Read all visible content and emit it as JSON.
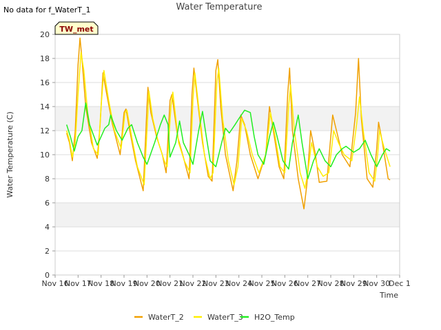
{
  "no_data_note": "No data for f_WaterT_1",
  "badge": "TW_met",
  "colors": {
    "WaterT_2": "#f0a000",
    "WaterT_3": "#ffee00",
    "H2O_Temp": "#22ee22",
    "band": "#f2f2f2",
    "grid": "#dddddd",
    "badge_bg": "#ffffcc"
  },
  "chart_data": {
    "type": "line",
    "title": "Water Temperature",
    "xlabel": "Time",
    "ylabel": "Water Temperature (C)",
    "ylim": [
      0,
      20
    ],
    "xlim": [
      "2023-11-16",
      "2023-12-01"
    ],
    "yticks": [
      0,
      2,
      4,
      6,
      8,
      10,
      12,
      14,
      16,
      18,
      20
    ],
    "xticks": [
      "Nov 16",
      "Nov 17",
      "Nov 18",
      "Nov 19",
      "Nov 20",
      "Nov 21",
      "Nov 22",
      "Nov 23",
      "Nov 24",
      "Nov 25",
      "Nov 26",
      "Nov 27",
      "Nov 28",
      "Nov 29",
      "Nov 30",
      "Dec 1"
    ],
    "grid": true,
    "legend_position": "bottom",
    "series": [
      {
        "name": "WaterT_2",
        "points": [
          [
            "Nov 16 12:00",
            11.8
          ],
          [
            "Nov 16 15:00",
            11.0
          ],
          [
            "Nov 16 18:00",
            9.5
          ],
          [
            "Nov 16 21:00",
            12.0
          ],
          [
            "Nov 17 00:00",
            17.5
          ],
          [
            "Nov 17 02:00",
            19.7
          ],
          [
            "Nov 17 04:00",
            18.0
          ],
          [
            "Nov 17 08:00",
            14.0
          ],
          [
            "Nov 17 14:00",
            11.0
          ],
          [
            "Nov 17 20:00",
            9.7
          ],
          [
            "Nov 17 23:00",
            12.5
          ],
          [
            "Nov 18 02:00",
            16.8
          ],
          [
            "Nov 18 06:00",
            15.0
          ],
          [
            "Nov 18 12:00",
            12.5
          ],
          [
            "Nov 18 20:00",
            10.0
          ],
          [
            "Nov 19 00:00",
            13.5
          ],
          [
            "Nov 19 02:00",
            13.8
          ],
          [
            "Nov 19 06:00",
            12.0
          ],
          [
            "Nov 19 12:00",
            9.5
          ],
          [
            "Nov 19 20:00",
            7.0
          ],
          [
            "Nov 20 00:00",
            14.0
          ],
          [
            "Nov 20 01:00",
            15.6
          ],
          [
            "Nov 20 04:00",
            13.5
          ],
          [
            "Nov 20 10:00",
            11.5
          ],
          [
            "Nov 20 16:00",
            10.0
          ],
          [
            "Nov 20 20:00",
            8.5
          ],
          [
            "Nov 21 00:00",
            14.5
          ],
          [
            "Nov 21 02:00",
            15.0
          ],
          [
            "Nov 21 08:00",
            11.5
          ],
          [
            "Nov 21 14:00",
            9.8
          ],
          [
            "Nov 21 20:00",
            8.0
          ],
          [
            "Nov 21 23:00",
            15.0
          ],
          [
            "Nov 22 01:00",
            17.2
          ],
          [
            "Nov 22 04:00",
            15.0
          ],
          [
            "Nov 22 10:00",
            11.0
          ],
          [
            "Nov 22 16:00",
            8.2
          ],
          [
            "Nov 22 20:00",
            7.8
          ],
          [
            "Nov 23 00:00",
            17.0
          ],
          [
            "Nov 23 02:00",
            17.9
          ],
          [
            "Nov 23 05:00",
            14.0
          ],
          [
            "Nov 23 10:00",
            10.0
          ],
          [
            "Nov 23 18:00",
            7.0
          ],
          [
            "Nov 23 22:00",
            9.5
          ],
          [
            "Nov 24 02:00",
            13.3
          ],
          [
            "Nov 24 06:00",
            12.5
          ],
          [
            "Nov 24 12:00",
            10.0
          ],
          [
            "Nov 24 20:00",
            8.0
          ],
          [
            "Nov 25 04:00",
            10.0
          ],
          [
            "Nov 25 08:00",
            14.0
          ],
          [
            "Nov 25 12:00",
            12.0
          ],
          [
            "Nov 25 18:00",
            9.0
          ],
          [
            "Nov 25 23:00",
            8.0
          ],
          [
            "Nov 26 03:00",
            15.0
          ],
          [
            "Nov 26 05:00",
            17.2
          ],
          [
            "Nov 26 08:00",
            12.0
          ],
          [
            "Nov 26 14:00",
            8.0
          ],
          [
            "Nov 26 20:00",
            5.5
          ],
          [
            "Nov 26 23:00",
            7.5
          ],
          [
            "Nov 27 03:00",
            12.0
          ],
          [
            "Nov 27 08:00",
            10.0
          ],
          [
            "Nov 27 12:00",
            7.7
          ],
          [
            "Nov 27 20:00",
            7.8
          ],
          [
            "Nov 28 02:00",
            13.3
          ],
          [
            "Nov 28 06:00",
            12.0
          ],
          [
            "Nov 28 12:00",
            10.0
          ],
          [
            "Nov 28 20:00",
            9.0
          ],
          [
            "Nov 29 02:00",
            13.5
          ],
          [
            "Nov 29 05:00",
            18.0
          ],
          [
            "Nov 29 08:00",
            13.0
          ],
          [
            "Nov 29 14:00",
            8.0
          ],
          [
            "Nov 29 20:00",
            7.3
          ],
          [
            "Nov 30 00:00",
            10.5
          ],
          [
            "Nov 30 02:00",
            12.7
          ],
          [
            "Nov 30 06:00",
            11.0
          ],
          [
            "Nov 30 12:00",
            8.0
          ],
          [
            "Nov 30 14:00",
            7.9
          ]
        ]
      },
      {
        "name": "WaterT_3",
        "points": [
          [
            "Nov 16 12:00",
            12.0
          ],
          [
            "Nov 16 15:00",
            11.2
          ],
          [
            "Nov 16 18:00",
            9.8
          ],
          [
            "Nov 16 21:00",
            11.0
          ],
          [
            "Nov 17 00:00",
            15.0
          ],
          [
            "Nov 17 03:00",
            18.5
          ],
          [
            "Nov 17 06:00",
            17.0
          ],
          [
            "Nov 17 10:00",
            13.5
          ],
          [
            "Nov 17 16:00",
            10.5
          ],
          [
            "Nov 17 21:00",
            10.0
          ],
          [
            "Nov 18 00:00",
            14.0
          ],
          [
            "Nov 18 03:00",
            17.0
          ],
          [
            "Nov 18 08:00",
            14.5
          ],
          [
            "Nov 18 14:00",
            12.0
          ],
          [
            "Nov 18 21:00",
            10.5
          ],
          [
            "Nov 19 01:00",
            13.5
          ],
          [
            "Nov 19 03:00",
            13.7
          ],
          [
            "Nov 19 08:00",
            11.5
          ],
          [
            "Nov 19 14:00",
            9.0
          ],
          [
            "Nov 19 21:00",
            7.5
          ],
          [
            "Nov 20 01:00",
            13.5
          ],
          [
            "Nov 20 02:00",
            15.3
          ],
          [
            "Nov 20 06:00",
            13.0
          ],
          [
            "Nov 20 12:00",
            11.0
          ],
          [
            "Nov 20 18:00",
            9.5
          ],
          [
            "Nov 20 21:00",
            9.0
          ],
          [
            "Nov 21 01:00",
            14.0
          ],
          [
            "Nov 21 03:00",
            15.2
          ],
          [
            "Nov 21 09:00",
            11.0
          ],
          [
            "Nov 21 15:00",
            9.5
          ],
          [
            "Nov 21 21:00",
            8.5
          ],
          [
            "Nov 22 00:00",
            14.5
          ],
          [
            "Nov 22 02:00",
            16.8
          ],
          [
            "Nov 22 06:00",
            14.0
          ],
          [
            "Nov 22 12:00",
            10.0
          ],
          [
            "Nov 22 18:00",
            8.0
          ],
          [
            "Nov 22 21:00",
            8.5
          ],
          [
            "Nov 23 01:00",
            16.0
          ],
          [
            "Nov 23 03:00",
            17.2
          ],
          [
            "Nov 23 07:00",
            13.0
          ],
          [
            "Nov 23 13:00",
            9.5
          ],
          [
            "Nov 23 19:00",
            7.5
          ],
          [
            "Nov 23 23:00",
            9.0
          ],
          [
            "Nov 24 03:00",
            13.0
          ],
          [
            "Nov 24 08:00",
            12.0
          ],
          [
            "Nov 24 14:00",
            10.0
          ],
          [
            "Nov 24 21:00",
            8.5
          ],
          [
            "Nov 25 04:00",
            10.0
          ],
          [
            "Nov 25 09:00",
            13.5
          ],
          [
            "Nov 25 14:00",
            11.5
          ],
          [
            "Nov 25 19:00",
            9.0
          ],
          [
            "Nov 26 00:00",
            8.5
          ],
          [
            "Nov 26 04:00",
            14.0
          ],
          [
            "Nov 26 06:00",
            15.8
          ],
          [
            "Nov 26 10:00",
            12.0
          ],
          [
            "Nov 26 16:00",
            8.5
          ],
          [
            "Nov 26 21:00",
            7.2
          ],
          [
            "Nov 27 00:00",
            8.5
          ],
          [
            "Nov 27 04:00",
            11.0
          ],
          [
            "Nov 27 10:00",
            9.0
          ],
          [
            "Nov 27 16:00",
            8.2
          ],
          [
            "Nov 27 22:00",
            8.5
          ],
          [
            "Nov 28 03:00",
            12.0
          ],
          [
            "Nov 28 08:00",
            11.0
          ],
          [
            "Nov 28 14:00",
            10.0
          ],
          [
            "Nov 28 22:00",
            9.5
          ],
          [
            "Nov 29 03:00",
            12.5
          ],
          [
            "Nov 29 06:00",
            14.8
          ],
          [
            "Nov 29 10:00",
            12.0
          ],
          [
            "Nov 29 16:00",
            8.5
          ],
          [
            "Nov 29 22:00",
            7.8
          ],
          [
            "Nov 30 01:00",
            10.0
          ],
          [
            "Nov 30 03:00",
            12.0
          ],
          [
            "Nov 30 08:00",
            10.5
          ],
          [
            "Nov 30 14:00",
            9.0
          ]
        ]
      },
      {
        "name": "H2O_Temp",
        "points": [
          [
            "Nov 16 12:00",
            12.5
          ],
          [
            "Nov 16 16:00",
            11.5
          ],
          [
            "Nov 16 20:00",
            10.3
          ],
          [
            "Nov 17 00:00",
            11.5
          ],
          [
            "Nov 17 04:00",
            12.0
          ],
          [
            "Nov 17 08:00",
            14.3
          ],
          [
            "Nov 17 12:00",
            12.5
          ],
          [
            "Nov 17 20:00",
            10.8
          ],
          [
            "Nov 18 00:00",
            11.5
          ],
          [
            "Nov 18 04:00",
            12.2
          ],
          [
            "Nov 18 08:00",
            12.5
          ],
          [
            "Nov 18 10:00",
            13.3
          ],
          [
            "Nov 18 16:00",
            12.0
          ],
          [
            "Nov 18 22:00",
            11.2
          ],
          [
            "Nov 19 04:00",
            12.2
          ],
          [
            "Nov 19 08:00",
            12.5
          ],
          [
            "Nov 19 14:00",
            11.0
          ],
          [
            "Nov 19 20:00",
            9.8
          ],
          [
            "Nov 20 00:00",
            9.2
          ],
          [
            "Nov 20 08:00",
            11.0
          ],
          [
            "Nov 20 14:00",
            12.5
          ],
          [
            "Nov 20 18:00",
            13.3
          ],
          [
            "Nov 20 22:00",
            12.5
          ],
          [
            "Nov 21 00:00",
            9.8
          ],
          [
            "Nov 21 06:00",
            11.0
          ],
          [
            "Nov 21 10:00",
            12.8
          ],
          [
            "Nov 21 14:00",
            11.0
          ],
          [
            "Nov 21 20:00",
            10.0
          ],
          [
            "Nov 22 00:00",
            9.2
          ],
          [
            "Nov 22 06:00",
            12.0
          ],
          [
            "Nov 22 10:00",
            13.6
          ],
          [
            "Nov 22 14:00",
            11.5
          ],
          [
            "Nov 22 18:00",
            9.5
          ],
          [
            "Nov 23 00:00",
            9.0
          ],
          [
            "Nov 23 06:00",
            11.0
          ],
          [
            "Nov 23 10:00",
            12.2
          ],
          [
            "Nov 23 14:00",
            11.8
          ],
          [
            "Nov 23 20:00",
            12.5
          ],
          [
            "Nov 24 00:00",
            13.0
          ],
          [
            "Nov 24 06:00",
            13.7
          ],
          [
            "Nov 24 12:00",
            13.5
          ],
          [
            "Nov 24 16:00",
            11.5
          ],
          [
            "Nov 24 20:00",
            10.0
          ],
          [
            "Nov 25 02:00",
            9.2
          ],
          [
            "Nov 25 08:00",
            11.5
          ],
          [
            "Nov 25 12:00",
            12.7
          ],
          [
            "Nov 25 16:00",
            11.5
          ],
          [
            "Nov 25 22:00",
            9.5
          ],
          [
            "Nov 26 04:00",
            8.8
          ],
          [
            "Nov 26 08:00",
            11.0
          ],
          [
            "Nov 26 14:00",
            13.3
          ],
          [
            "Nov 26 18:00",
            11.0
          ],
          [
            "Nov 27 00:00",
            8.0
          ],
          [
            "Nov 27 06:00",
            9.5
          ],
          [
            "Nov 27 12:00",
            10.5
          ],
          [
            "Nov 27 18:00",
            9.5
          ],
          [
            "Nov 28 00:00",
            9.0
          ],
          [
            "Nov 28 06:00",
            10.0
          ],
          [
            "Nov 28 12:00",
            10.5
          ],
          [
            "Nov 28 16:00",
            10.7
          ],
          [
            "Nov 29 00:00",
            10.2
          ],
          [
            "Nov 29 06:00",
            10.5
          ],
          [
            "Nov 29 12:00",
            11.2
          ],
          [
            "Nov 29 18:00",
            10.0
          ],
          [
            "Nov 30 00:00",
            9.0
          ],
          [
            "Nov 30 06:00",
            10.0
          ],
          [
            "Nov 30 10:00",
            10.5
          ],
          [
            "Nov 30 14:00",
            10.3
          ]
        ]
      }
    ]
  }
}
